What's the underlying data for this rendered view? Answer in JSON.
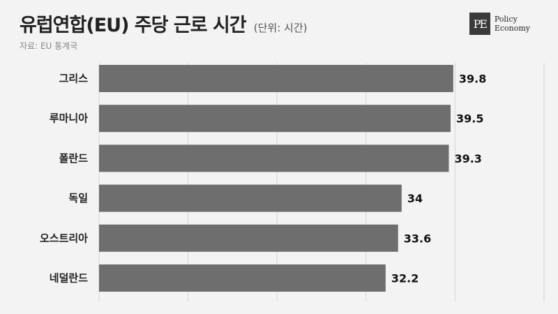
{
  "header": {
    "title": "유럽연합(EU) 주당 근로 시간",
    "unit": "(단위: 시간)",
    "source": "자료: EU 통계국"
  },
  "logo": {
    "mark": "PE",
    "line1": "Policy",
    "line2": "Economy"
  },
  "colors": {
    "bar": "#6e6e6e",
    "background": "#f3f3f3",
    "grid": "#d4d4d4"
  },
  "chart_data": {
    "type": "bar",
    "orientation": "horizontal",
    "categories": [
      "그리스",
      "루마니아",
      "폴란드",
      "독일",
      "오스트리아",
      "네덜란드"
    ],
    "values": [
      39.8,
      39.5,
      39.3,
      34,
      33.6,
      32.2
    ],
    "value_labels": [
      "39.8",
      "39.5",
      "39.3",
      "34",
      "33.6",
      "32.2"
    ],
    "xlim": [
      0,
      50
    ],
    "grid": true
  }
}
